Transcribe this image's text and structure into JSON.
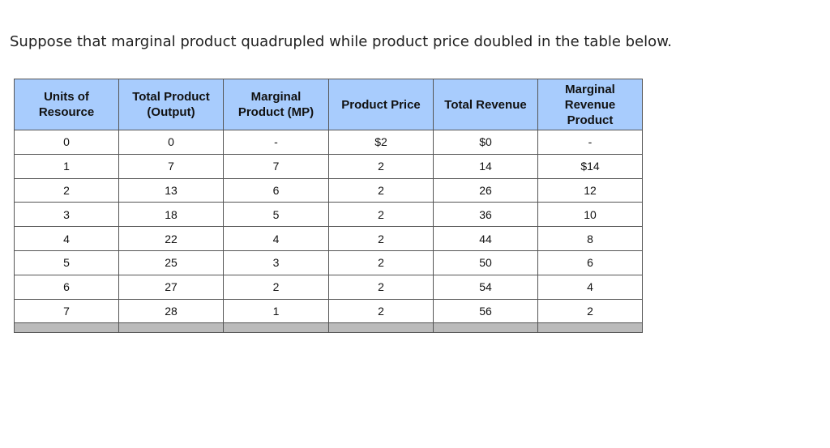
{
  "question": "Suppose that marginal product quadrupled while product price doubled in the table below.",
  "table": {
    "headers": [
      [
        "Units of",
        "Resource"
      ],
      [
        "Total Product",
        "(Output)"
      ],
      [
        "Marginal",
        "Product (MP)"
      ],
      [
        "Product Price"
      ],
      [
        "Total Revenue"
      ],
      [
        "Marginal",
        "Revenue",
        "Product"
      ]
    ],
    "rows": [
      [
        "0",
        "0",
        "-",
        "$2",
        "$0",
        "-"
      ],
      [
        "1",
        "7",
        "7",
        "2",
        "14",
        "$14"
      ],
      [
        "2",
        "13",
        "6",
        "2",
        "26",
        "12"
      ],
      [
        "3",
        "18",
        "5",
        "2",
        "36",
        "10"
      ],
      [
        "4",
        "22",
        "4",
        "2",
        "44",
        "8"
      ],
      [
        "5",
        "25",
        "3",
        "2",
        "50",
        "6"
      ],
      [
        "6",
        "27",
        "2",
        "2",
        "54",
        "4"
      ],
      [
        "7",
        "28",
        "1",
        "2",
        "56",
        "2"
      ]
    ]
  },
  "colors": {
    "header_bg": "#a8ccfd",
    "footer_bg": "#bbbbbb"
  }
}
